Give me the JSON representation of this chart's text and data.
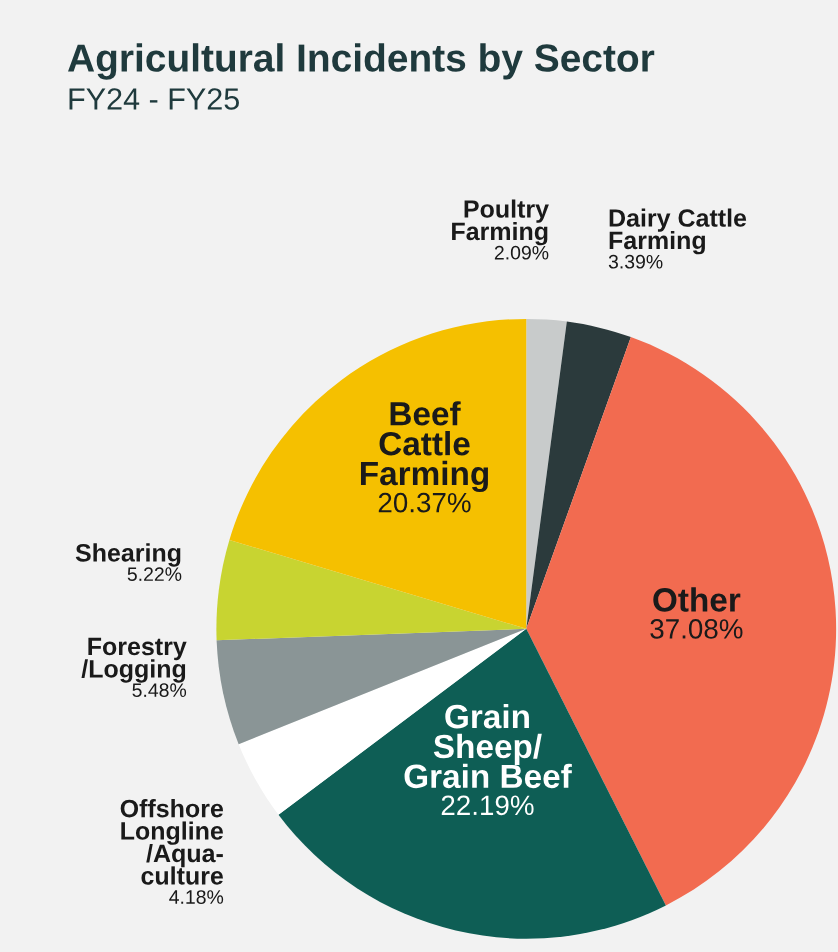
{
  "chart_data": {
    "type": "pie",
    "title": "Agricultural Incidents by Sector",
    "subtitle": "FY24 - FY25",
    "categories": [
      "Poultry\nFarming",
      "Dairy Cattle\nFarming",
      "Other",
      "Grain\nSheep/\nGrain Beef",
      "Offshore\nLongline\n/Aqua-\nculture",
      "Forestry\n/Logging",
      "Shearing",
      "Beef\nCattle\nFarming"
    ],
    "values": [
      2.09,
      3.39,
      37.08,
      22.19,
      4.18,
      5.48,
      5.22,
      20.37
    ],
    "colors": [
      "#c8cbcb",
      "#2b3a3c",
      "#f26b50",
      "#0e5e55",
      "#ffffff",
      "#8a9596",
      "#c8d431",
      "#f5c000"
    ],
    "value_labels": [
      "2.09%",
      "3.39%",
      "37.08%",
      "22.19%",
      "4.18%",
      "5.48%",
      "5.22%",
      "20.37%"
    ]
  }
}
